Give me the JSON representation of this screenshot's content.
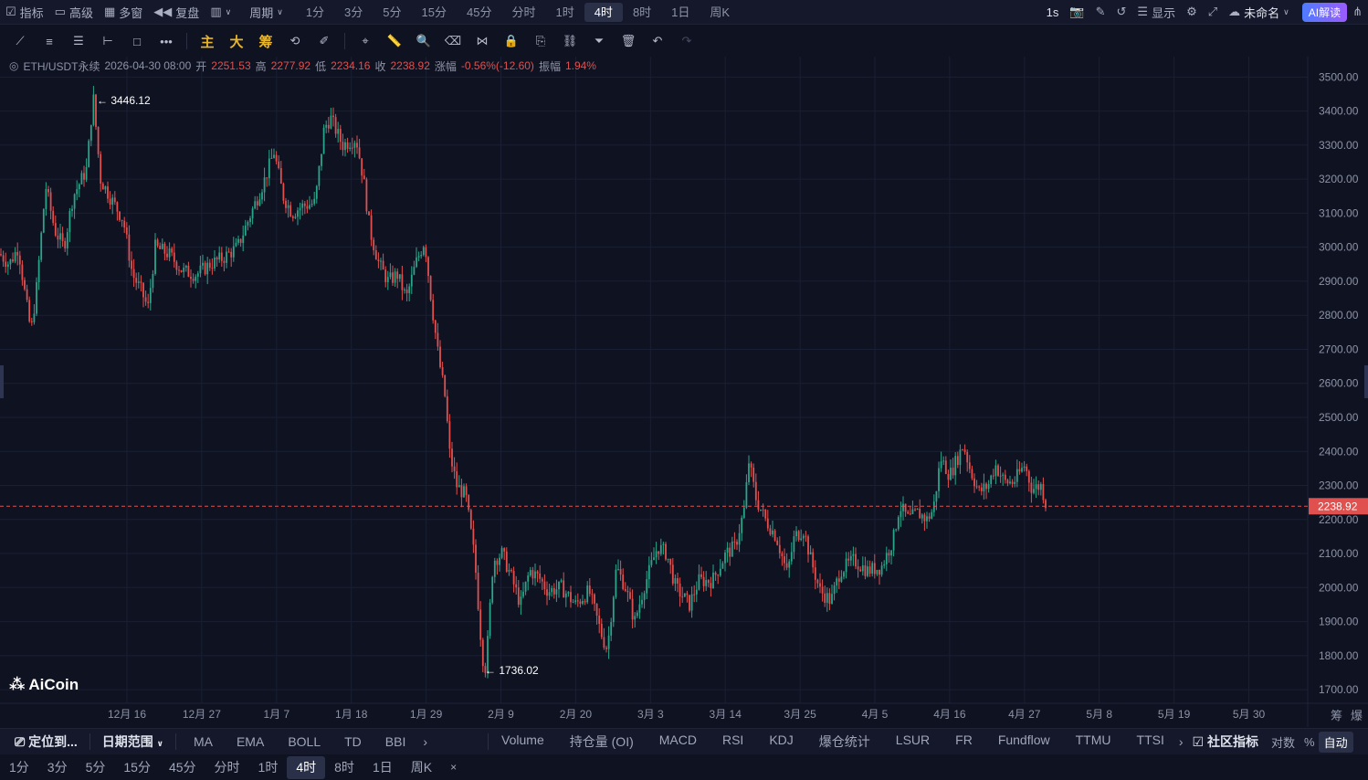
{
  "topbar": {
    "indicator": "指标",
    "advanced": "高级",
    "multiwindow": "多窗",
    "replay": "复盘",
    "period_menu": "周期",
    "periods": [
      "1分",
      "3分",
      "5分",
      "15分",
      "45分",
      "分时",
      "1时",
      "4时",
      "8时",
      "1日",
      "周K"
    ],
    "active_period": "4时",
    "refresh": "1s",
    "display": "显示",
    "layout_name": "未命名",
    "ai_button": "AI解读"
  },
  "toolbar": {
    "main": "主",
    "big": "大",
    "chips": "筹"
  },
  "infobar": {
    "symbol": "ETH/USDT永续",
    "datetime": "2026-04-30 08:00",
    "open_label": "开",
    "open": "2251.53",
    "high_label": "高",
    "high": "2277.92",
    "low_label": "低",
    "low": "2234.16",
    "close_label": "收",
    "close": "2238.92",
    "change_label": "涨幅",
    "change": "-0.56%(-12.60)",
    "amp_label": "振幅",
    "amp": "1.94%"
  },
  "chart_data": {
    "type": "candlestick",
    "symbol": "ETH/USDT永续",
    "interval": "4时",
    "y_ticks": [
      3500,
      3400,
      3300,
      3200,
      3100,
      3000,
      2900,
      2800,
      2700,
      2600,
      2500,
      2400,
      2300,
      2200,
      2100,
      2000,
      1900,
      1800,
      1700
    ],
    "ylim": [
      1660,
      3560
    ],
    "x_ticks": [
      "12月 16",
      "12月 27",
      "1月 7",
      "1月 18",
      "1月 29",
      "2月 9",
      "2月 20",
      "3月 3",
      "3月 14",
      "3月 25",
      "4月 5",
      "4月 16",
      "4月 27",
      "5月 8",
      "5月 19",
      "5月 30"
    ],
    "last_price": 2238.92,
    "max_label": "3446.12",
    "min_label": "1736.02",
    "price_path_anchors": [
      [
        0,
        2980
      ],
      [
        10,
        2950
      ],
      [
        20,
        3000
      ],
      [
        28,
        2850
      ],
      [
        34,
        2750
      ],
      [
        40,
        2880
      ],
      [
        50,
        3180
      ],
      [
        60,
        3050
      ],
      [
        70,
        3000
      ],
      [
        80,
        3150
      ],
      [
        95,
        3230
      ],
      [
        102,
        3446
      ],
      [
        110,
        3200
      ],
      [
        120,
        3150
      ],
      [
        135,
        3080
      ],
      [
        145,
        2920
      ],
      [
        155,
        2870
      ],
      [
        162,
        2820
      ],
      [
        170,
        3000
      ],
      [
        185,
        2980
      ],
      [
        200,
        2930
      ],
      [
        215,
        2920
      ],
      [
        230,
        2950
      ],
      [
        245,
        2970
      ],
      [
        260,
        3000
      ],
      [
        275,
        3100
      ],
      [
        290,
        3200
      ],
      [
        300,
        3280
      ],
      [
        310,
        3150
      ],
      [
        320,
        3100
      ],
      [
        330,
        3120
      ],
      [
        345,
        3130
      ],
      [
        355,
        3350
      ],
      [
        362,
        3380
      ],
      [
        375,
        3300
      ],
      [
        390,
        3320
      ],
      [
        398,
        3200
      ],
      [
        405,
        3050
      ],
      [
        415,
        2950
      ],
      [
        425,
        2900
      ],
      [
        435,
        2920
      ],
      [
        445,
        2850
      ],
      [
        455,
        2950
      ],
      [
        465,
        3020
      ],
      [
        472,
        2850
      ],
      [
        480,
        2680
      ],
      [
        488,
        2550
      ],
      [
        492,
        2400
      ],
      [
        500,
        2300
      ],
      [
        510,
        2270
      ],
      [
        520,
        2080
      ],
      [
        528,
        1800
      ],
      [
        532,
        1760
      ],
      [
        540,
        2080
      ],
      [
        550,
        2100
      ],
      [
        560,
        2030
      ],
      [
        570,
        1950
      ],
      [
        580,
        2050
      ],
      [
        590,
        2030
      ],
      [
        600,
        1990
      ],
      [
        615,
        2000
      ],
      [
        630,
        1950
      ],
      [
        645,
        1990
      ],
      [
        660,
        1850
      ],
      [
        665,
        1820
      ],
      [
        675,
        2060
      ],
      [
        685,
        2000
      ],
      [
        695,
        1900
      ],
      [
        705,
        2000
      ],
      [
        720,
        2120
      ],
      [
        730,
        2100
      ],
      [
        740,
        2000
      ],
      [
        755,
        1950
      ],
      [
        765,
        2020
      ],
      [
        780,
        2020
      ],
      [
        795,
        2100
      ],
      [
        805,
        2120
      ],
      [
        815,
        2230
      ],
      [
        820,
        2370
      ],
      [
        828,
        2260
      ],
      [
        838,
        2200
      ],
      [
        850,
        2150
      ],
      [
        862,
        2040
      ],
      [
        870,
        2150
      ],
      [
        880,
        2170
      ],
      [
        888,
        2080
      ],
      [
        898,
        1990
      ],
      [
        910,
        1960
      ],
      [
        920,
        2050
      ],
      [
        935,
        2080
      ],
      [
        950,
        2050
      ],
      [
        965,
        2060
      ],
      [
        978,
        2140
      ],
      [
        985,
        2240
      ],
      [
        995,
        2200
      ],
      [
        1005,
        2220
      ],
      [
        1015,
        2200
      ],
      [
        1022,
        2230
      ],
      [
        1030,
        2380
      ],
      [
        1040,
        2330
      ],
      [
        1055,
        2420
      ],
      [
        1062,
        2350
      ],
      [
        1072,
        2280
      ],
      [
        1082,
        2300
      ],
      [
        1090,
        2360
      ],
      [
        1100,
        2310
      ],
      [
        1110,
        2310
      ],
      [
        1122,
        2360
      ],
      [
        1130,
        2290
      ],
      [
        1140,
        2300
      ],
      [
        1146,
        2239
      ]
    ]
  },
  "bottom_bar": {
    "locate": "定位到...",
    "date_range": "日期范围",
    "indicators": [
      "MA",
      "EMA",
      "BOLL",
      "TD",
      "BBI"
    ],
    "sub_indicators": [
      "Volume",
      "持仓量 (OI)",
      "MACD",
      "RSI",
      "KDJ",
      "爆仓统计",
      "LSUR",
      "FR",
      "Fundflow",
      "TTMU",
      "TTSI"
    ],
    "community": "社区指标",
    "log": "对数",
    "percent": "%",
    "auto": "自动"
  },
  "bottom_periods": {
    "items": [
      "1分",
      "3分",
      "5分",
      "15分",
      "45分",
      "分时",
      "1时",
      "4时",
      "8时",
      "1日",
      "周K"
    ],
    "active": "4时",
    "close": "×"
  },
  "right_side": {
    "chips_short": "筹",
    "liq_short": "爆"
  },
  "logo_text": "AiCoin",
  "colors": {
    "background": "#0f1221",
    "up": "#2aa58a",
    "down": "#e0504f",
    "price_line": "#e0504f",
    "ai_gradient_start": "#4e7bff",
    "ai_gradient_end": "#9b5bff"
  }
}
